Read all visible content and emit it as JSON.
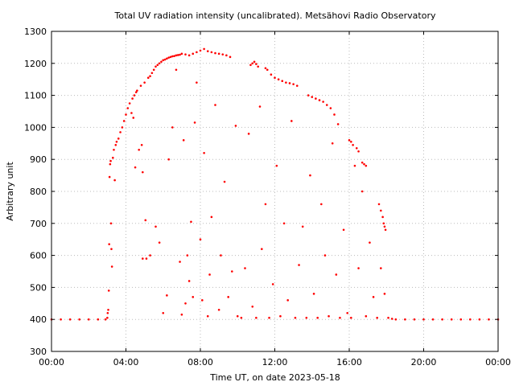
{
  "chart_data": {
    "type": "scatter",
    "title": "Total UV radiation intensity (uncalibrated). Metsähovi Radio Observatory",
    "xlabel": "Time UT, on date 2023-05-18",
    "ylabel": "Arbitrary unit",
    "xlim": [
      0,
      24
    ],
    "ylim": [
      300,
      1300
    ],
    "x_ticks": [
      0,
      4,
      8,
      12,
      16,
      20,
      24
    ],
    "x_tick_labels": [
      "00:00",
      "04:00",
      "08:00",
      "12:00",
      "16:00",
      "20:00",
      "00:00"
    ],
    "y_ticks": [
      300,
      400,
      500,
      600,
      700,
      800,
      900,
      1000,
      1100,
      1200,
      1300
    ],
    "y_tick_labels": [
      "300",
      "400",
      "500",
      "600",
      "700",
      "800",
      "900",
      "1000",
      "1100",
      "1200",
      "1300"
    ],
    "grid": true,
    "marker_color": "#ff0000",
    "series": [
      {
        "name": "",
        "points": [
          [
            0.0,
            400
          ],
          [
            0.5,
            400
          ],
          [
            1.0,
            400
          ],
          [
            1.5,
            400
          ],
          [
            2.0,
            400
          ],
          [
            2.5,
            400
          ],
          [
            2.9,
            400
          ],
          [
            3.0,
            405
          ],
          [
            3.02,
            420
          ],
          [
            3.05,
            430
          ],
          [
            3.08,
            490
          ],
          [
            3.1,
            635
          ],
          [
            3.12,
            845
          ],
          [
            3.15,
            885
          ],
          [
            3.18,
            895
          ],
          [
            3.2,
            700
          ],
          [
            3.22,
            620
          ],
          [
            3.25,
            565
          ],
          [
            3.3,
            905
          ],
          [
            3.35,
            930
          ],
          [
            3.4,
            835
          ],
          [
            3.45,
            945
          ],
          [
            3.5,
            955
          ],
          [
            3.6,
            965
          ],
          [
            3.7,
            985
          ],
          [
            3.8,
            1000
          ],
          [
            3.9,
            1020
          ],
          [
            4.0,
            1040
          ],
          [
            4.1,
            1060
          ],
          [
            4.2,
            1075
          ],
          [
            4.3,
            1045
          ],
          [
            4.35,
            1090
          ],
          [
            4.4,
            1030
          ],
          [
            4.45,
            1100
          ],
          [
            4.5,
            875
          ],
          [
            4.55,
            1110
          ],
          [
            4.6,
            1115
          ],
          [
            4.7,
            930
          ],
          [
            4.8,
            1130
          ],
          [
            4.85,
            945
          ],
          [
            4.9,
            860
          ],
          [
            5.0,
            1140
          ],
          [
            5.05,
            710
          ],
          [
            5.1,
            590
          ],
          [
            5.2,
            1155
          ],
          [
            5.3,
            1160
          ],
          [
            5.4,
            1170
          ],
          [
            5.5,
            1180
          ],
          [
            5.6,
            1190
          ],
          [
            5.7,
            1195
          ],
          [
            5.8,
            1200
          ],
          [
            5.9,
            1205
          ],
          [
            6.0,
            1210
          ],
          [
            6.1,
            1212
          ],
          [
            6.2,
            1215
          ],
          [
            6.3,
            1218
          ],
          [
            6.4,
            1220
          ],
          [
            6.5,
            1222
          ],
          [
            6.6,
            1223
          ],
          [
            6.7,
            1225
          ],
          [
            6.8,
            1226
          ],
          [
            6.9,
            1227
          ],
          [
            7.0,
            1230
          ],
          [
            7.2,
            1228
          ],
          [
            7.4,
            1225
          ],
          [
            7.6,
            1230
          ],
          [
            7.8,
            1235
          ],
          [
            8.0,
            1240
          ],
          [
            8.2,
            1245
          ],
          [
            8.4,
            1238
          ],
          [
            8.6,
            1235
          ],
          [
            8.8,
            1232
          ],
          [
            9.0,
            1230
          ],
          [
            9.2,
            1228
          ],
          [
            9.4,
            1225
          ],
          [
            9.6,
            1220
          ],
          [
            10.7,
            1195
          ],
          [
            10.8,
            1200
          ],
          [
            10.9,
            1205
          ],
          [
            11.0,
            1198
          ],
          [
            11.1,
            1190
          ],
          [
            11.5,
            1185
          ],
          [
            11.6,
            1180
          ],
          [
            11.8,
            1165
          ],
          [
            12.0,
            1155
          ],
          [
            12.2,
            1150
          ],
          [
            12.4,
            1145
          ],
          [
            12.6,
            1140
          ],
          [
            12.8,
            1138
          ],
          [
            13.0,
            1135
          ],
          [
            13.2,
            1130
          ],
          [
            13.8,
            1100
          ],
          [
            14.0,
            1095
          ],
          [
            14.2,
            1090
          ],
          [
            14.4,
            1085
          ],
          [
            14.6,
            1080
          ],
          [
            14.8,
            1070
          ],
          [
            15.0,
            1060
          ],
          [
            15.2,
            1040
          ],
          [
            15.4,
            1010
          ],
          [
            16.0,
            960
          ],
          [
            16.1,
            955
          ],
          [
            16.2,
            945
          ],
          [
            16.4,
            935
          ],
          [
            16.5,
            925
          ],
          [
            16.7,
            890
          ],
          [
            16.8,
            885
          ],
          [
            16.9,
            880
          ],
          [
            17.6,
            760
          ],
          [
            17.7,
            740
          ],
          [
            17.8,
            720
          ],
          [
            17.85,
            700
          ],
          [
            17.9,
            690
          ],
          [
            17.95,
            680
          ],
          [
            18.1,
            405
          ],
          [
            18.3,
            402
          ],
          [
            18.5,
            400
          ],
          [
            19.0,
            400
          ],
          [
            19.5,
            400
          ],
          [
            20.0,
            400
          ],
          [
            20.5,
            400
          ],
          [
            21.0,
            400
          ],
          [
            21.5,
            400
          ],
          [
            22.0,
            400
          ],
          [
            22.5,
            400
          ],
          [
            23.0,
            400
          ],
          [
            23.5,
            400
          ],
          [
            24.0,
            400
          ],
          [
            4.9,
            590
          ],
          [
            5.3,
            600
          ],
          [
            5.6,
            690
          ],
          [
            5.8,
            640
          ],
          [
            6.0,
            420
          ],
          [
            6.2,
            475
          ],
          [
            6.3,
            900
          ],
          [
            6.5,
            1000
          ],
          [
            6.7,
            1180
          ],
          [
            6.9,
            580
          ],
          [
            7.0,
            415
          ],
          [
            7.1,
            960
          ],
          [
            7.2,
            450
          ],
          [
            7.3,
            600
          ],
          [
            7.4,
            520
          ],
          [
            7.5,
            705
          ],
          [
            7.6,
            470
          ],
          [
            7.7,
            1015
          ],
          [
            7.8,
            1140
          ],
          [
            8.0,
            650
          ],
          [
            8.1,
            460
          ],
          [
            8.2,
            920
          ],
          [
            8.4,
            410
          ],
          [
            8.5,
            540
          ],
          [
            8.6,
            720
          ],
          [
            8.8,
            1070
          ],
          [
            9.0,
            430
          ],
          [
            9.1,
            600
          ],
          [
            9.3,
            830
          ],
          [
            9.5,
            470
          ],
          [
            9.7,
            550
          ],
          [
            9.9,
            1005
          ],
          [
            10.0,
            410
          ],
          [
            10.2,
            405
          ],
          [
            10.4,
            560
          ],
          [
            10.6,
            980
          ],
          [
            10.8,
            440
          ],
          [
            11.0,
            405
          ],
          [
            11.2,
            1065
          ],
          [
            11.3,
            620
          ],
          [
            11.5,
            760
          ],
          [
            11.7,
            405
          ],
          [
            11.9,
            510
          ],
          [
            12.1,
            880
          ],
          [
            12.3,
            410
          ],
          [
            12.5,
            700
          ],
          [
            12.7,
            460
          ],
          [
            12.9,
            1020
          ],
          [
            13.1,
            405
          ],
          [
            13.3,
            570
          ],
          [
            13.5,
            690
          ],
          [
            13.7,
            405
          ],
          [
            13.9,
            850
          ],
          [
            14.1,
            480
          ],
          [
            14.3,
            405
          ],
          [
            14.5,
            760
          ],
          [
            14.7,
            600
          ],
          [
            14.9,
            410
          ],
          [
            15.1,
            950
          ],
          [
            15.3,
            540
          ],
          [
            15.5,
            405
          ],
          [
            15.7,
            680
          ],
          [
            15.9,
            420
          ],
          [
            16.1,
            405
          ],
          [
            16.3,
            880
          ],
          [
            16.5,
            560
          ],
          [
            16.7,
            800
          ],
          [
            16.9,
            410
          ],
          [
            17.1,
            640
          ],
          [
            17.3,
            470
          ],
          [
            17.5,
            405
          ],
          [
            17.7,
            560
          ],
          [
            17.9,
            480
          ]
        ]
      }
    ]
  }
}
